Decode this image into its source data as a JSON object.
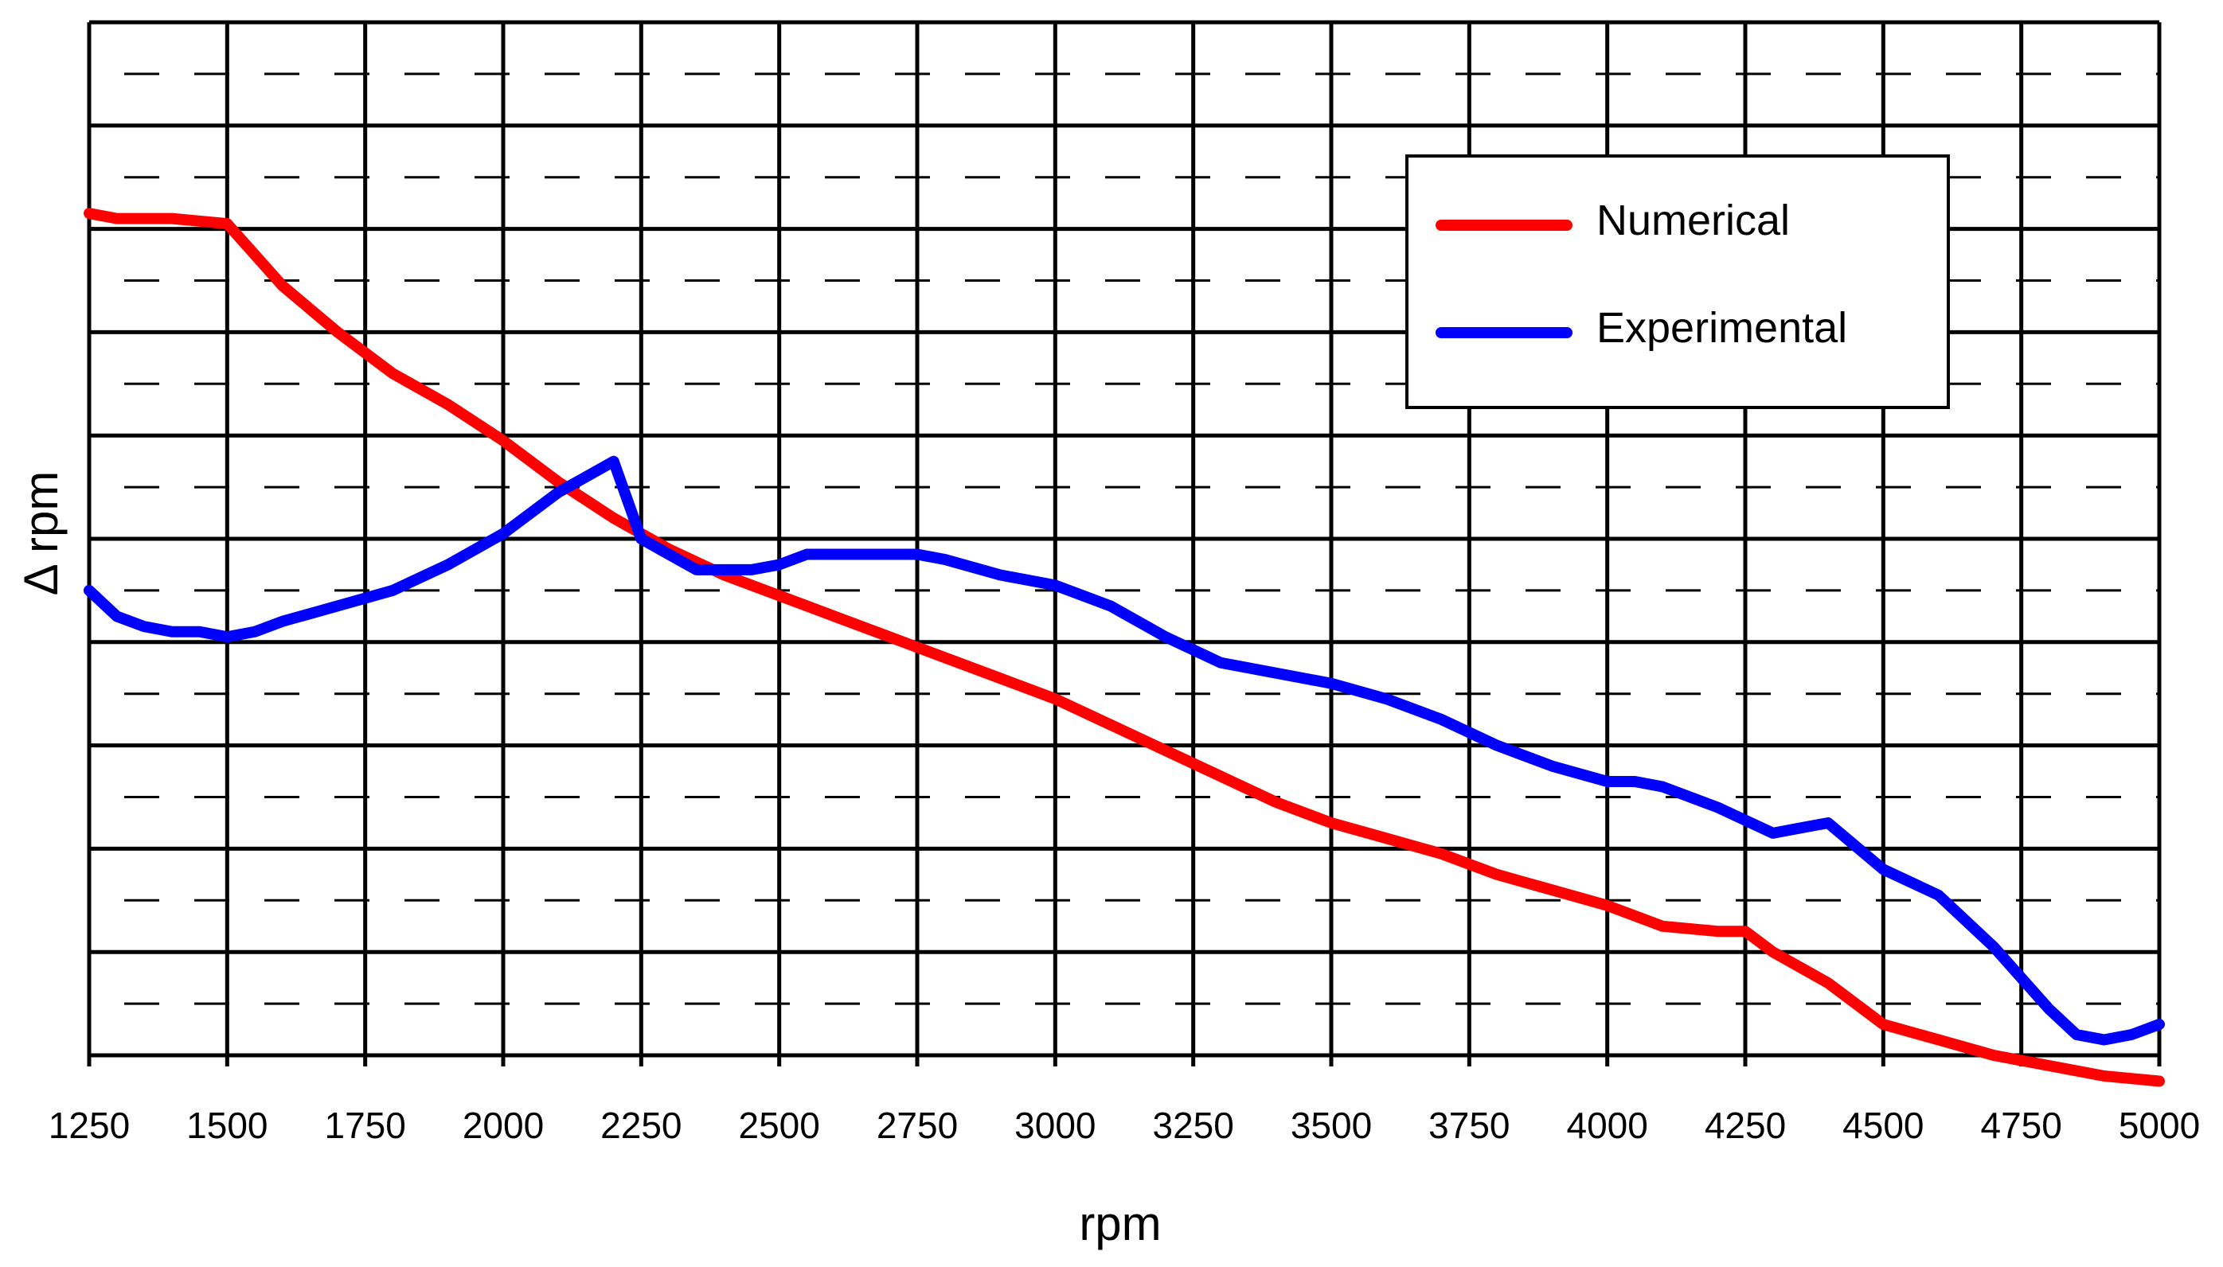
{
  "chart_data": {
    "type": "line",
    "title": "",
    "xlabel": "rpm",
    "ylabel": "Δ rpm",
    "xlim": [
      1250,
      5000
    ],
    "ylim": [
      0,
      10
    ],
    "grid": true,
    "minor_grid": "dashed",
    "y_tick_labels_visible": false,
    "x_ticks": [
      "1250",
      "1500",
      "1750",
      "2000",
      "2250",
      "2500",
      "2750",
      "3000",
      "3250",
      "3500",
      "3750",
      "4000",
      "4250",
      "4500",
      "4750",
      "5000"
    ],
    "legend_position": "top-right",
    "series": [
      {
        "name": "Numerical",
        "color": "#ff0000",
        "x": [
          1250,
          1300,
          1400,
          1500,
          1550,
          1600,
          1700,
          1750,
          1800,
          1900,
          2000,
          2100,
          2200,
          2250,
          2300,
          2400,
          2500,
          2600,
          2700,
          2800,
          2900,
          3000,
          3100,
          3200,
          3300,
          3400,
          3500,
          3600,
          3700,
          3800,
          3900,
          4000,
          4100,
          4200,
          4250,
          4300,
          4400,
          4500,
          4600,
          4700,
          4800,
          4900,
          5000
        ],
        "y": [
          8.15,
          8.1,
          8.1,
          8.05,
          7.75,
          7.45,
          7.0,
          6.8,
          6.6,
          6.3,
          5.95,
          5.55,
          5.2,
          5.05,
          4.9,
          4.65,
          4.45,
          4.25,
          4.05,
          3.85,
          3.65,
          3.45,
          3.2,
          2.95,
          2.7,
          2.45,
          2.25,
          2.1,
          1.95,
          1.75,
          1.6,
          1.45,
          1.25,
          1.2,
          1.2,
          1.0,
          0.7,
          0.3,
          0.15,
          0.0,
          -0.1,
          -0.2,
          -0.25
        ]
      },
      {
        "name": "Experimental",
        "color": "#0000ff",
        "x": [
          1250,
          1300,
          1350,
          1400,
          1450,
          1500,
          1550,
          1600,
          1700,
          1800,
          1900,
          2000,
          2100,
          2200,
          2250,
          2300,
          2350,
          2400,
          2450,
          2500,
          2550,
          2600,
          2700,
          2750,
          2800,
          2900,
          3000,
          3100,
          3200,
          3300,
          3400,
          3500,
          3600,
          3700,
          3800,
          3900,
          4000,
          4050,
          4100,
          4200,
          4300,
          4350,
          4400,
          4500,
          4600,
          4700,
          4800,
          4850,
          4900,
          4950,
          5000
        ],
        "y": [
          4.5,
          4.25,
          4.15,
          4.1,
          4.1,
          4.05,
          4.1,
          4.2,
          4.35,
          4.5,
          4.75,
          5.05,
          5.45,
          5.75,
          5.0,
          4.85,
          4.7,
          4.7,
          4.7,
          4.75,
          4.85,
          4.85,
          4.85,
          4.85,
          4.8,
          4.65,
          4.55,
          4.35,
          4.05,
          3.8,
          3.7,
          3.6,
          3.45,
          3.25,
          3.0,
          2.8,
          2.65,
          2.65,
          2.6,
          2.4,
          2.15,
          2.2,
          2.25,
          1.8,
          1.55,
          1.05,
          0.45,
          0.2,
          0.15,
          0.2,
          0.3
        ]
      }
    ]
  }
}
